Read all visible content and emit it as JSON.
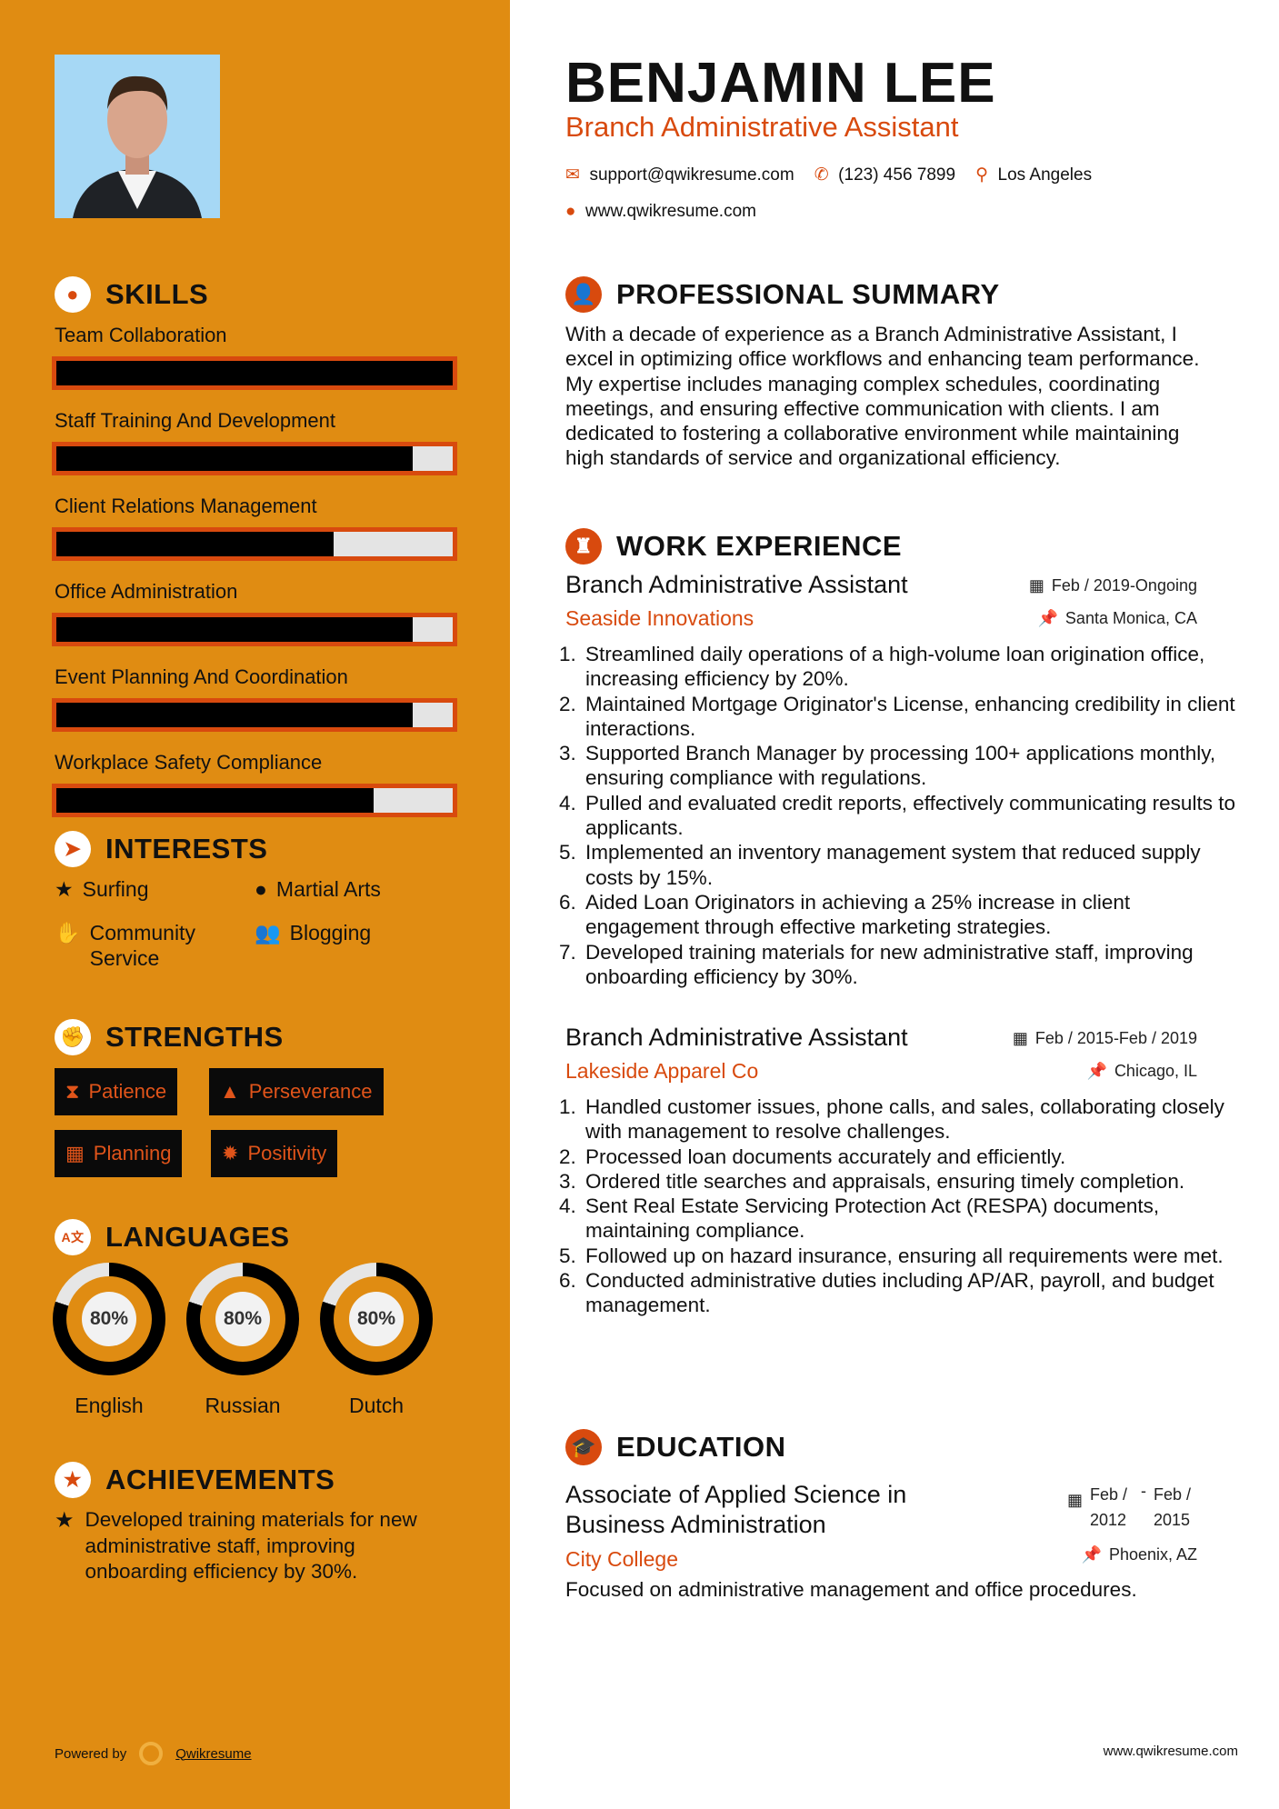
{
  "header": {
    "name": "BENJAMIN LEE",
    "title": "Branch Administrative Assistant",
    "email": "support@qwikresume.com",
    "phone": "(123) 456 7899",
    "location": "Los Angeles",
    "website": "www.qwikresume.com"
  },
  "colors": {
    "sidebar": "#E08C12",
    "accent": "#D84A0E",
    "bar_fill": "#000000",
    "bar_empty": "#E4E4E4"
  },
  "skills": {
    "heading": "SKILLS",
    "items": [
      {
        "label": "Team Collaboration",
        "percent": 100
      },
      {
        "label": "Staff Training And Development",
        "percent": 90
      },
      {
        "label": "Client Relations Management",
        "percent": 70
      },
      {
        "label": "Office Administration",
        "percent": 90
      },
      {
        "label": "Event Planning And Coordination",
        "percent": 90
      },
      {
        "label": "Workplace Safety Compliance",
        "percent": 80
      }
    ]
  },
  "interests": {
    "heading": "INTERESTS",
    "items": [
      {
        "label": "Surfing",
        "icon": "star-icon"
      },
      {
        "label": "Martial Arts",
        "icon": "globe-icon"
      },
      {
        "label": "Community Service",
        "icon": "hand-icon"
      },
      {
        "label": "Blogging",
        "icon": "users-icon"
      }
    ]
  },
  "strengths": {
    "heading": "STRENGTHS",
    "items": [
      {
        "label": "Patience",
        "icon": "hourglass-icon"
      },
      {
        "label": "Perseverance",
        "icon": "road-icon"
      },
      {
        "label": "Planning",
        "icon": "calendar-icon"
      },
      {
        "label": "Positivity",
        "icon": "sun-icon"
      }
    ]
  },
  "languages": {
    "heading": "LANGUAGES",
    "items": [
      {
        "name": "English",
        "percent": 80,
        "label": "80%"
      },
      {
        "name": "Russian",
        "percent": 80,
        "label": "80%"
      },
      {
        "name": "Dutch",
        "percent": 80,
        "label": "80%"
      }
    ]
  },
  "achievements": {
    "heading": "ACHIEVEMENTS",
    "text": "Developed training materials for new administrative staff, improving onboarding efficiency by 30%."
  },
  "summary": {
    "heading": "PROFESSIONAL SUMMARY",
    "text": "With a decade of experience as a Branch Administrative Assistant, I excel in optimizing office workflows and enhancing team performance. My expertise includes managing complex schedules, coordinating meetings, and ensuring effective communication with clients. I am dedicated to fostering a collaborative environment while maintaining high standards of service and organizational efficiency."
  },
  "work": {
    "heading": "WORK EXPERIENCE",
    "jobs": [
      {
        "title": "Branch Administrative Assistant",
        "company": "Seaside Innovations",
        "dates": "Feb / 2019-Ongoing",
        "location": "Santa Monica, CA",
        "bullets": [
          "Streamlined daily operations of a high-volume loan origination office, increasing efficiency by 20%.",
          "Maintained Mortgage Originator's License, enhancing credibility in client interactions.",
          "Supported Branch Manager by processing 100+ applications monthly, ensuring compliance with regulations.",
          "Pulled and evaluated credit reports, effectively communicating results to applicants.",
          "Implemented an inventory management system that reduced supply costs by 15%.",
          "Aided Loan Originators in achieving a 25% increase in client engagement through effective marketing strategies.",
          "Developed training materials for new administrative staff, improving onboarding efficiency by 30%."
        ]
      },
      {
        "title": "Branch Administrative Assistant",
        "company": "Lakeside Apparel Co",
        "dates": "Feb / 2015-Feb / 2019",
        "location": "Chicago, IL",
        "bullets": [
          "Handled customer issues, phone calls, and sales, collaborating closely with management to resolve challenges.",
          "Processed loan documents accurately and efficiently.",
          "Ordered title searches and appraisals, ensuring timely completion.",
          "Sent Real Estate Servicing Protection Act (RESPA) documents, maintaining compliance.",
          "Followed up on hazard insurance, ensuring all requirements were met.",
          "Conducted administrative duties including AP/AR, payroll, and budget management."
        ]
      }
    ]
  },
  "education": {
    "heading": "EDUCATION",
    "degree": "Associate of Applied Science in Business Administration",
    "school": "City College",
    "start": "Feb / 2012",
    "end": "Feb / 2015",
    "location": "Phoenix, AZ",
    "description": "Focused on administrative management and office procedures."
  },
  "footer": {
    "powered_by": "Powered by",
    "brand": "Qwikresume",
    "website": "www.qwikresume.com"
  }
}
